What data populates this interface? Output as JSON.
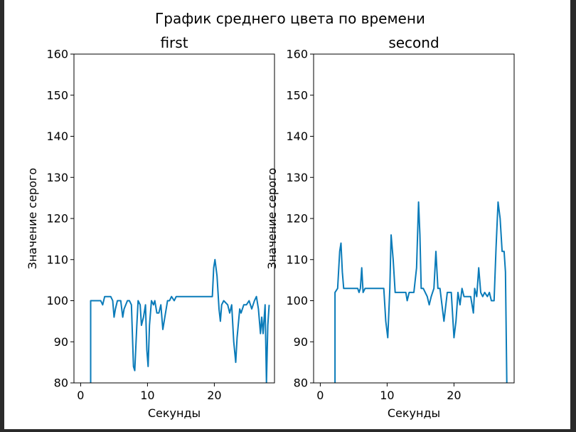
{
  "colors": {
    "line": "#0a7bb9",
    "background": "#ffffff",
    "window": "#2b2b2b"
  },
  "chart_data": {
    "type": "line",
    "suptitle": "График среднего цвета по времени",
    "plots": [
      {
        "title": "first",
        "xlabel": "Секунды",
        "ylabel": "Значение серого",
        "xlim": [
          -1,
          29
        ],
        "ylim": [
          80,
          160
        ],
        "xticks": [
          "0",
          "10",
          "20"
        ],
        "yticks": [
          "80",
          "90",
          "100",
          "110",
          "120",
          "130",
          "140",
          "150",
          "160"
        ],
        "x": [
          1.5,
          1.5,
          3.0,
          3.3,
          3.6,
          4.5,
          4.8,
          5.0,
          5.2,
          5.5,
          6.0,
          6.3,
          6.5,
          7.0,
          7.3,
          7.6,
          7.9,
          8.1,
          8.4,
          8.6,
          8.9,
          9.1,
          9.4,
          9.7,
          9.9,
          10.1,
          10.3,
          10.6,
          10.9,
          11.1,
          11.4,
          11.7,
          12.0,
          12.3,
          12.6,
          13.0,
          13.3,
          13.6,
          14.0,
          14.3,
          15.0,
          16.0,
          18.0,
          19.7,
          19.9,
          20.1,
          20.4,
          20.7,
          20.9,
          21.1,
          21.4,
          22.0,
          22.3,
          22.6,
          22.9,
          23.2,
          23.4,
          23.8,
          24.0,
          24.4,
          24.8,
          25.2,
          25.6,
          26.0,
          26.3,
          26.6,
          26.9,
          27.1,
          27.3,
          27.6,
          27.8,
          28.0,
          28.2
        ],
        "y": [
          80,
          100,
          100,
          99,
          101,
          101,
          100,
          96,
          98,
          100,
          100,
          96,
          98,
          100,
          100,
          99,
          84,
          83,
          94,
          100,
          99,
          94,
          96,
          99,
          88,
          84,
          94,
          100,
          99,
          100,
          97,
          97,
          99,
          93,
          96,
          100,
          100,
          101,
          100,
          101,
          101,
          101,
          101,
          101,
          108,
          110,
          106,
          98,
          95,
          99,
          100,
          99,
          97,
          99,
          90,
          85,
          91,
          98,
          97,
          99,
          99,
          100,
          98,
          100,
          101,
          98,
          92,
          96,
          92,
          99,
          80,
          94,
          99
        ]
      },
      {
        "title": "second",
        "xlabel": "Секунды",
        "ylabel": "Значение серого",
        "xlim": [
          -1,
          29
        ],
        "ylim": [
          80,
          160
        ],
        "xticks": [
          "0",
          "10",
          "20"
        ],
        "yticks": [
          "80",
          "90",
          "100",
          "110",
          "120",
          "130",
          "140",
          "150",
          "160"
        ],
        "x": [
          2.2,
          2.2,
          2.6,
          2.9,
          3.1,
          3.3,
          3.5,
          4.0,
          5.0,
          5.6,
          5.8,
          6.0,
          6.2,
          6.4,
          6.7,
          7.0,
          8.0,
          9.0,
          9.5,
          9.8,
          10.1,
          10.4,
          10.6,
          10.9,
          11.2,
          12.0,
          12.8,
          13.0,
          13.3,
          13.6,
          14.0,
          14.4,
          14.7,
          14.9,
          15.1,
          15.4,
          16.0,
          16.3,
          16.6,
          17.0,
          17.3,
          17.6,
          17.9,
          18.2,
          18.5,
          19.0,
          19.3,
          19.6,
          20.0,
          20.3,
          20.6,
          20.9,
          21.2,
          21.5,
          22.0,
          22.5,
          22.9,
          23.1,
          23.4,
          23.7,
          24.0,
          24.3,
          24.6,
          25.0,
          25.3,
          25.6,
          26.0,
          26.3,
          26.6,
          26.9,
          27.2,
          27.5,
          27.7,
          27.9
        ],
        "y": [
          80,
          102,
          103,
          112,
          114,
          107,
          103,
          103,
          103,
          103,
          102,
          103,
          108,
          102,
          103,
          103,
          103,
          103,
          103,
          95,
          91,
          103,
          116,
          110,
          102,
          102,
          102,
          100,
          102,
          102,
          102,
          108,
          124,
          116,
          103,
          103,
          101,
          99,
          101,
          103,
          112,
          103,
          103,
          99,
          95,
          102,
          102,
          102,
          91,
          95,
          102,
          99,
          103,
          101,
          101,
          101,
          97,
          103,
          101,
          108,
          102,
          101,
          102,
          101,
          102,
          100,
          100,
          113,
          124,
          120,
          112,
          112,
          107,
          80
        ]
      }
    ]
  }
}
